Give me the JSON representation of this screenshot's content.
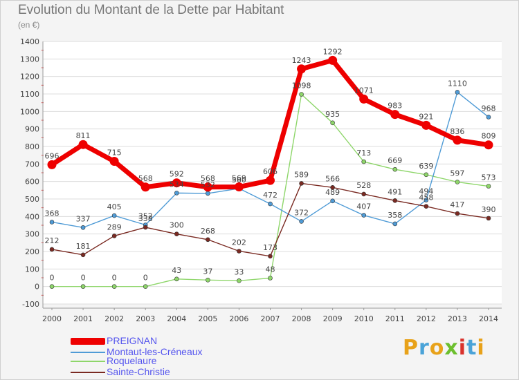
{
  "title": "Evolution du Montant de la Dette par Habitant",
  "unit_label": "(en €)",
  "logo_text": "Proxiti",
  "logo_colors": [
    "#e8a21a",
    "#4aa3d8",
    "#e8a21a",
    "#6cbf2e",
    "#d9322c",
    "#4aa3d8",
    "#e8a21a"
  ],
  "chart_data": {
    "type": "line",
    "title": "Evolution du Montant de la Dette par Habitant",
    "ylabel": "(en €)",
    "xlabel": "",
    "ylim": [
      -100,
      1400
    ],
    "yticks": [
      -100,
      0,
      100,
      200,
      300,
      400,
      500,
      600,
      700,
      800,
      900,
      1000,
      1100,
      1200,
      1300,
      1400
    ],
    "x": [
      "2000",
      "2001",
      "2002",
      "2003",
      "2004",
      "2005",
      "2006",
      "2007",
      "2008",
      "2009",
      "2010",
      "2011",
      "2012",
      "2013",
      "2014"
    ],
    "grid": "horizontal",
    "legend_position": "bottom-left",
    "series": [
      {
        "name": "PREIGNAN",
        "color": "#ee0000",
        "values": [
          696,
          811,
          715,
          568,
          592,
          568,
          569,
          606,
          1243,
          1292,
          1071,
          983,
          921,
          836,
          809
        ]
      },
      {
        "name": "Montaut-les-Créneaux",
        "color": "#4f9bd6",
        "values": [
          368,
          337,
          405,
          352,
          534,
          532,
          560,
          472,
          372,
          489,
          407,
          358,
          494,
          1110,
          968
        ]
      },
      {
        "name": "Roquelaure",
        "color": "#8ed66a",
        "values": [
          0,
          0,
          0,
          0,
          43,
          37,
          33,
          48,
          1098,
          935,
          713,
          669,
          639,
          597,
          573
        ]
      },
      {
        "name": "Sainte-Christie",
        "color": "#7a2a22",
        "values": [
          212,
          181,
          289,
          338,
          300,
          268,
          202,
          173,
          589,
          566,
          528,
          491,
          458,
          417,
          390
        ]
      }
    ]
  }
}
